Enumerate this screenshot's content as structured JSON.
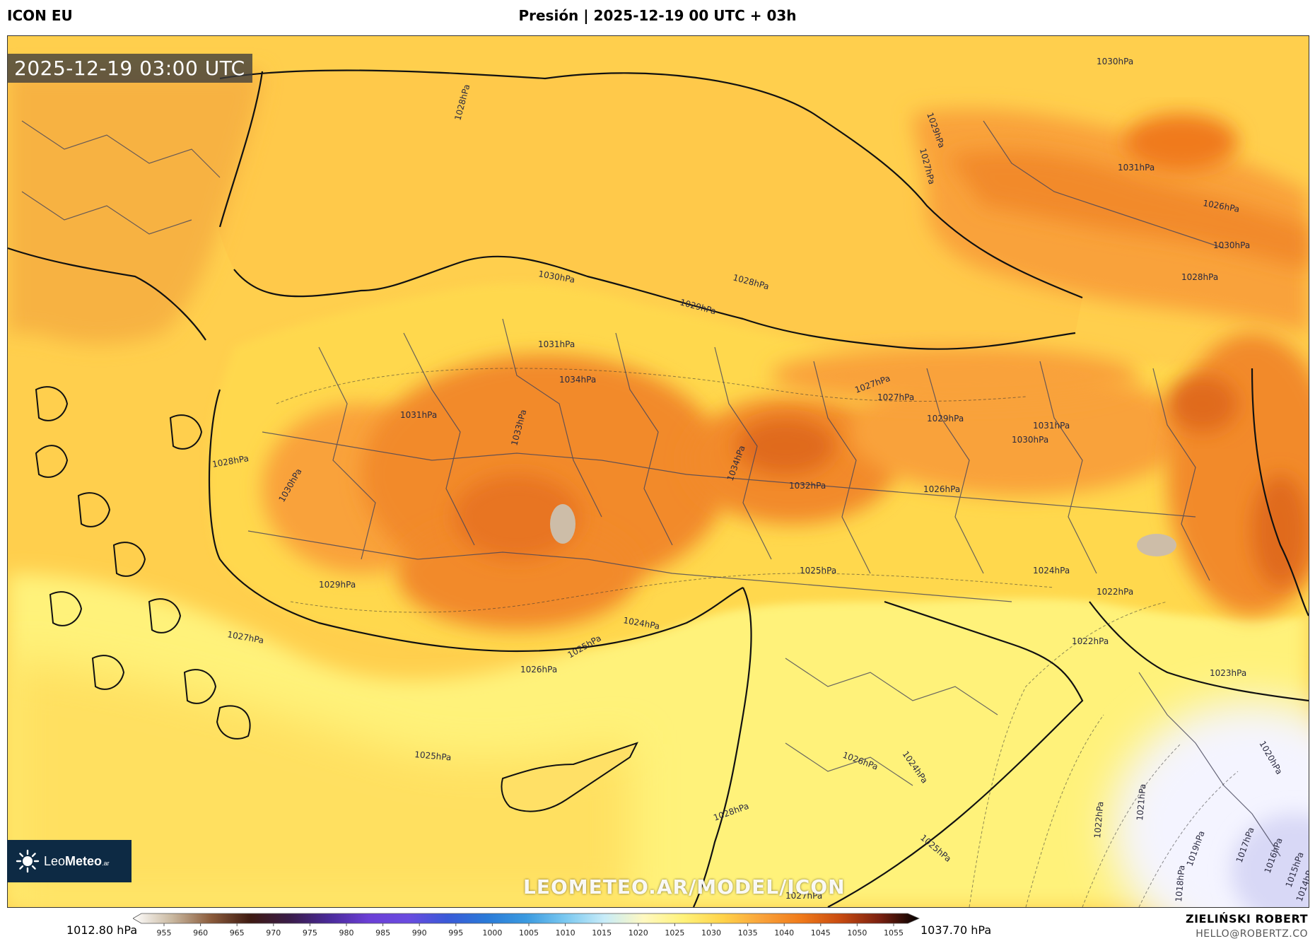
{
  "header": {
    "model": "ICON EU",
    "title": "Presión | 2025-12-19 00 UTC + 03h"
  },
  "map": {
    "timestamp": "2025-12-19 03:00 UTC",
    "watermark": "LEOMETEO.AR/MODEL/ICON",
    "colors": {
      "sea": "#ffc94a",
      "land_low": "#fff27a",
      "land_mid": "#ffd34a",
      "land_high": "#f9a23a",
      "plateau": "#f28a2a",
      "peak": "#e06b1c",
      "low_pressure": "#e4e4f6",
      "border": "#111111",
      "province": "#444455"
    },
    "isobar_labels": [
      "1028hPa",
      "1027hPa",
      "1030hPa",
      "1029hPa",
      "1028hPa",
      "1025hPa",
      "1029hPa",
      "1030hPa",
      "1031hPa",
      "1034hPa",
      "1033hPa",
      "1031hPa",
      "1028hPa",
      "1027hPa",
      "1030hPa",
      "1029hPa",
      "1027hPa",
      "1026hPa",
      "1025hPa",
      "1024hPa",
      "1034hPa",
      "1032hPa",
      "1027hPa",
      "1029hPa",
      "1031hPa",
      "1030hPa",
      "1026hPa",
      "1025hPa",
      "1024hPa",
      "1022hPa",
      "1022hPa",
      "1023hPa",
      "1020hPa",
      "1019hPa",
      "1017hPa",
      "1016hPa",
      "1015hPa",
      "1014hPa",
      "1018hPa",
      "1021hPa",
      "1022hPa",
      "1025hPa",
      "1026hPa",
      "1024hPa",
      "1028hPa",
      "1031hPa",
      "1026hPa",
      "1030hPa",
      "1028hPa",
      "1027hPa"
    ]
  },
  "logo": {
    "brand_light": "Leo",
    "brand_bold": "Meteo",
    "brand_suffix": ".ar",
    "icon": "sun-icon"
  },
  "colorbar": {
    "min_label": "1012.80 hPa",
    "max_label": "1037.70 hPa",
    "ticks": [
      "955",
      "960",
      "965",
      "970",
      "975",
      "980",
      "985",
      "990",
      "995",
      "1000",
      "1005",
      "1010",
      "1015",
      "1020",
      "1025",
      "1030",
      "1035",
      "1040",
      "1045",
      "1050",
      "1055"
    ],
    "stops": [
      "#ffffff",
      "#c9b8a0",
      "#8a5a3a",
      "#3e1a12",
      "#3a1c4a",
      "#4a2a9a",
      "#6b3fd6",
      "#6a4be0",
      "#3a5ad8",
      "#2a7ad8",
      "#3a9ae0",
      "#7ac8f0",
      "#c8ecf8",
      "#fff8c0",
      "#fff27a",
      "#ffd34a",
      "#f9a23a",
      "#f07a1a",
      "#c84a10",
      "#7a2010",
      "#000000"
    ]
  },
  "author": {
    "name": "ZIELIŃSKI ROBERT",
    "email": "HELLO@ROBERTZ.CO"
  }
}
